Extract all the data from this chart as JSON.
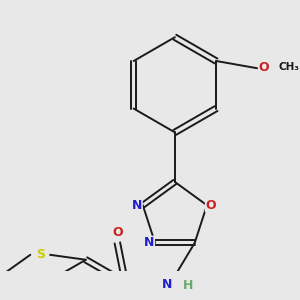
{
  "background_color": "#e8e8e8",
  "bond_color": "#1a1a1a",
  "figsize": [
    3.0,
    3.0
  ],
  "dpi": 100,
  "colors": {
    "N": "#2020cc",
    "O": "#cc2020",
    "S": "#cccc00",
    "NH": "#6aaa6a",
    "H": "#6aaa6a",
    "C": "#1a1a1a"
  }
}
